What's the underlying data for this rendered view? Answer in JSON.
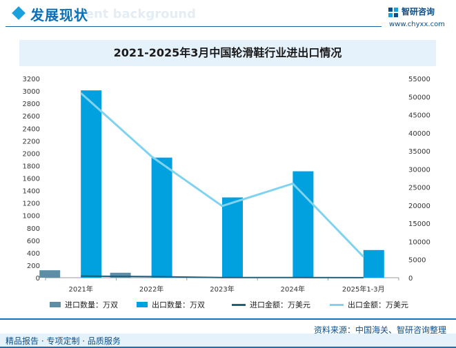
{
  "section": {
    "title": "发展现状",
    "ghost_text": "ment background"
  },
  "brand": {
    "name": "智研咨询",
    "url": "www.chyxx.com"
  },
  "colors": {
    "brand_blue": "#0b6fb5",
    "import_qty": "#5d8ea6",
    "export_qty": "#00a1de",
    "import_amt": "#1f5f7a",
    "export_amt": "#7fd3f0"
  },
  "chart_data": {
    "type": "bar",
    "title": "2021-2025年3月中国轮滑鞋行业进出口情况",
    "categories": [
      "2021年",
      "2022年",
      "2023年",
      "2024年",
      "2025年1-3月"
    ],
    "y_left": {
      "min": 0,
      "max": 3200,
      "step": 200
    },
    "y_right": {
      "min": 0,
      "max": 55000,
      "step": 5000
    },
    "series": [
      {
        "name": "进口数量：万双",
        "kind": "bar",
        "axis": "left",
        "color": "#5d8ea6",
        "values": [
          120,
          80,
          3,
          3,
          2
        ]
      },
      {
        "name": "出口数量：万双",
        "kind": "bar",
        "axis": "left",
        "color": "#00a1de",
        "values": [
          3010,
          1930,
          1290,
          1710,
          445
        ]
      },
      {
        "name": "进口金额：万美元",
        "kind": "line",
        "axis": "right",
        "color": "#1f5f7a",
        "values": [
          450,
          300,
          50,
          40,
          30
        ]
      },
      {
        "name": "出口金额：万美元",
        "kind": "line",
        "axis": "right",
        "color": "#7fd3f0",
        "values": [
          51000,
          33500,
          19800,
          26000,
          5800
        ]
      }
    ],
    "legend_position": "bottom",
    "grid": false
  },
  "footer": {
    "source": "资料来源：中国海关、智研咨询整理",
    "slogan": "精品报告 · 专项定制 · 品质服务"
  }
}
